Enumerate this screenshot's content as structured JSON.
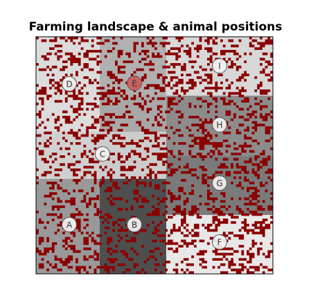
{
  "title": "Farming landscape & animal positions",
  "colors": {
    "dot": "#8b0000",
    "marker_fill": "#f2f2f2",
    "marker_highlight_fill": "#cd5c5c",
    "marker_stroke": "#555555",
    "frame": "#000000"
  },
  "grid": {
    "columns": 3,
    "rows": 4,
    "cells": [
      {
        "col": 0,
        "row": 0,
        "shade": "#dcdcdc"
      },
      {
        "col": 1,
        "row": 0,
        "shade": "#b0b0b0"
      },
      {
        "col": 2,
        "row": 0,
        "shade": "#d8d8d8"
      },
      {
        "col": 0,
        "row": 1,
        "shade": "#dcdcdc"
      },
      {
        "col": 1,
        "row": 1,
        "shade": "#a8a8a8"
      },
      {
        "col": 2,
        "row": 1,
        "shade": "#8c8c8c"
      },
      {
        "col": 0,
        "row": 2,
        "shade": "#d0d0d0"
      },
      {
        "col": 1,
        "row": 2,
        "shade": "#cccccc"
      },
      {
        "col": 2,
        "row": 2,
        "shade": "#7a7a7a"
      },
      {
        "col": 0,
        "row": 3,
        "shade": "#999999"
      },
      {
        "col": 1,
        "row": 3,
        "shade": "#4e4e4e"
      },
      {
        "col": 2,
        "row": 3,
        "shade": "#e8e8e8"
      }
    ]
  },
  "animals": [
    {
      "label": "D",
      "highlight": false
    },
    {
      "label": "E",
      "highlight": true
    },
    {
      "label": "I",
      "highlight": false
    },
    {
      "label": "H",
      "highlight": false
    },
    {
      "label": "C",
      "highlight": false
    },
    {
      "label": "G",
      "highlight": false
    },
    {
      "label": "A",
      "highlight": false
    },
    {
      "label": "B",
      "highlight": false
    },
    {
      "label": "F",
      "highlight": false
    }
  ]
}
